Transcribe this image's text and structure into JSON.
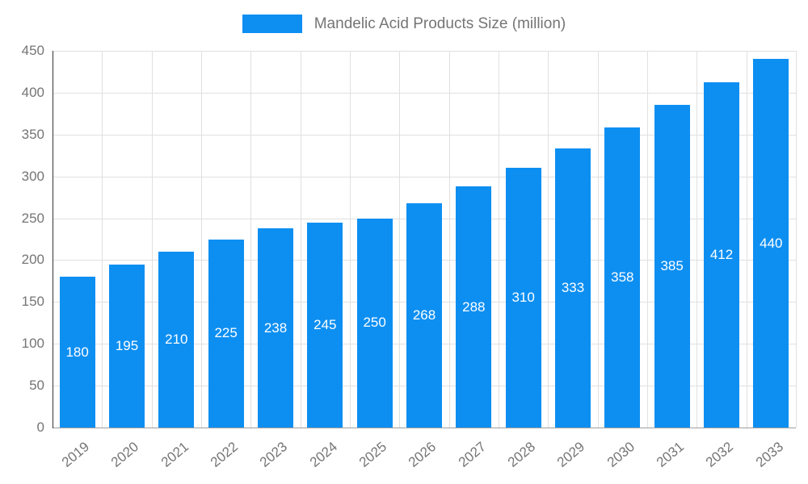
{
  "chart_data": {
    "type": "bar",
    "title": "Mandelic Acid Products Size (million)",
    "categories": [
      "2019",
      "2020",
      "2021",
      "2022",
      "2023",
      "2024",
      "2025",
      "2026",
      "2027",
      "2028",
      "2029",
      "2030",
      "2031",
      "2032",
      "2033"
    ],
    "values": [
      180,
      195,
      210,
      225,
      238,
      245,
      250,
      268,
      288,
      310,
      333,
      358,
      385,
      412,
      440
    ],
    "xlabel": "",
    "ylabel": "",
    "ylim": [
      0,
      450
    ],
    "ytick_step": 50,
    "grid": "on",
    "legend_position": "top",
    "bar_color": "#0d8ff2",
    "value_label_color": "#ffffff",
    "axis_text_color": "#757575"
  },
  "legend": {
    "label": "Mandelic Acid Products Size (million)"
  }
}
